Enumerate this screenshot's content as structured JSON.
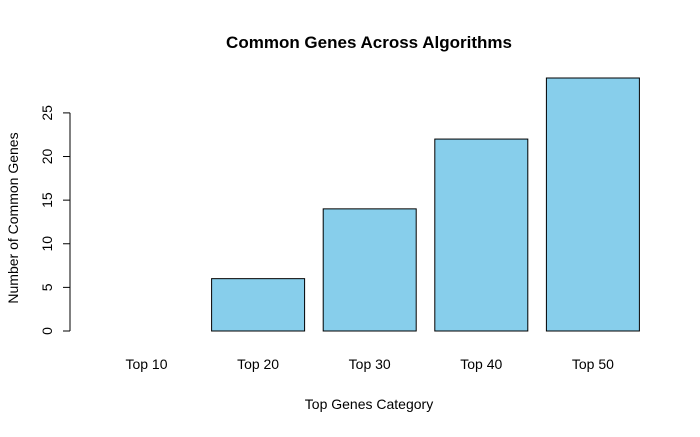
{
  "chart_data": {
    "type": "bar",
    "title": "Common Genes Across Algorithms",
    "xlabel": "Top Genes Category",
    "ylabel": "Number of Common Genes",
    "categories": [
      "Top 10",
      "Top 20",
      "Top 30",
      "Top 40",
      "Top 50"
    ],
    "values": [
      0,
      6,
      14,
      22,
      29
    ],
    "ylim": [
      0,
      29
    ],
    "yticks": [
      0,
      5,
      10,
      15,
      20,
      25
    ],
    "bar_color": "#87CEEB",
    "bar_border_color": "#000000",
    "grid": false,
    "legend": "none"
  }
}
